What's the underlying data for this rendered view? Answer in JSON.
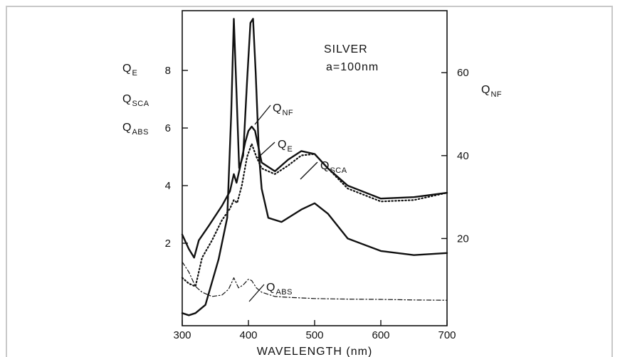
{
  "chart_data": {
    "type": "line",
    "annotation": {
      "line1": "SILVER",
      "line2": "a=100nm"
    },
    "xlabel": "WAVELENGTH (nm)",
    "xlim": [
      300,
      700
    ],
    "xticks": [
      300,
      400,
      500,
      600,
      700
    ],
    "ylim_left": [
      0,
      10
    ],
    "yticks_left": [
      2,
      4,
      6,
      8
    ],
    "ylim_right": [
      0,
      75
    ],
    "yticks_right": [
      20,
      40,
      60
    ],
    "left_axis_labels": [
      {
        "main": "Q",
        "sub": "E"
      },
      {
        "main": "Q",
        "sub": "SCA"
      },
      {
        "main": "Q",
        "sub": "ABS"
      }
    ],
    "right_axis_label": {
      "main": "Q",
      "sub": "NF"
    },
    "grid": false,
    "series": [
      {
        "name": "Q_E",
        "label": {
          "main": "Q",
          "sub": "E"
        },
        "axis": "left",
        "style": "solid",
        "x": [
          300,
          310,
          318,
          325,
          340,
          360,
          372,
          378,
          382,
          388,
          395,
          400,
          405,
          410,
          420,
          440,
          460,
          480,
          500,
          520,
          550,
          600,
          650,
          700
        ],
        "y": [
          2.3,
          1.8,
          1.5,
          2.1,
          2.6,
          3.3,
          3.8,
          4.4,
          4.1,
          4.7,
          5.5,
          5.9,
          6.05,
          5.9,
          4.8,
          4.5,
          4.9,
          5.2,
          5.1,
          4.6,
          4.0,
          3.55,
          3.6,
          3.75
        ]
      },
      {
        "name": "Q_SCA",
        "label": {
          "main": "Q",
          "sub": "SCA"
        },
        "axis": "left",
        "style": "dotted",
        "x": [
          300,
          310,
          320,
          330,
          345,
          360,
          372,
          378,
          383,
          390,
          398,
          405,
          412,
          420,
          440,
          460,
          480,
          500,
          520,
          550,
          600,
          650,
          700
        ],
        "y": [
          0.8,
          0.6,
          0.5,
          1.5,
          2.1,
          2.8,
          3.2,
          3.5,
          3.4,
          4.0,
          5.0,
          5.45,
          5.0,
          4.6,
          4.4,
          4.7,
          5.05,
          5.1,
          4.6,
          3.9,
          3.45,
          3.5,
          3.75
        ]
      },
      {
        "name": "Q_ABS",
        "label": {
          "main": "Q",
          "sub": "ABS"
        },
        "axis": "left",
        "style": "dashdot",
        "x": [
          300,
          310,
          320,
          330,
          345,
          360,
          370,
          378,
          385,
          392,
          400,
          405,
          412,
          420,
          440,
          460,
          500,
          550,
          600,
          650,
          700
        ],
        "y": [
          1.35,
          1.0,
          0.5,
          0.3,
          0.15,
          0.2,
          0.4,
          0.8,
          0.45,
          0.55,
          0.75,
          0.7,
          0.45,
          0.3,
          0.15,
          0.12,
          0.08,
          0.06,
          0.05,
          0.03,
          0.02
        ]
      },
      {
        "name": "Q_NF",
        "label": {
          "main": "Q",
          "sub": "NF"
        },
        "axis": "right",
        "style": "solid",
        "x": [
          300,
          310,
          320,
          335,
          355,
          368,
          374,
          378,
          382,
          386,
          392,
          398,
          403,
          407,
          411,
          416,
          420,
          430,
          450,
          480,
          500,
          520,
          550,
          600,
          650,
          700
        ],
        "y": [
          2,
          1.5,
          2,
          4,
          15,
          25,
          50,
          73,
          55,
          37,
          40,
          58,
          72,
          73,
          60,
          40,
          32,
          25,
          24,
          27,
          28.5,
          26,
          20,
          17,
          16,
          16.5
        ]
      }
    ],
    "curve_labels": [
      {
        "series": "Q_NF",
        "main": "Q",
        "sub": "NF"
      },
      {
        "series": "Q_E",
        "main": "Q",
        "sub": "E"
      },
      {
        "series": "Q_SCA",
        "main": "Q",
        "sub": "SCA"
      },
      {
        "series": "Q_ABS",
        "main": "Q",
        "sub": "ABS"
      }
    ]
  }
}
